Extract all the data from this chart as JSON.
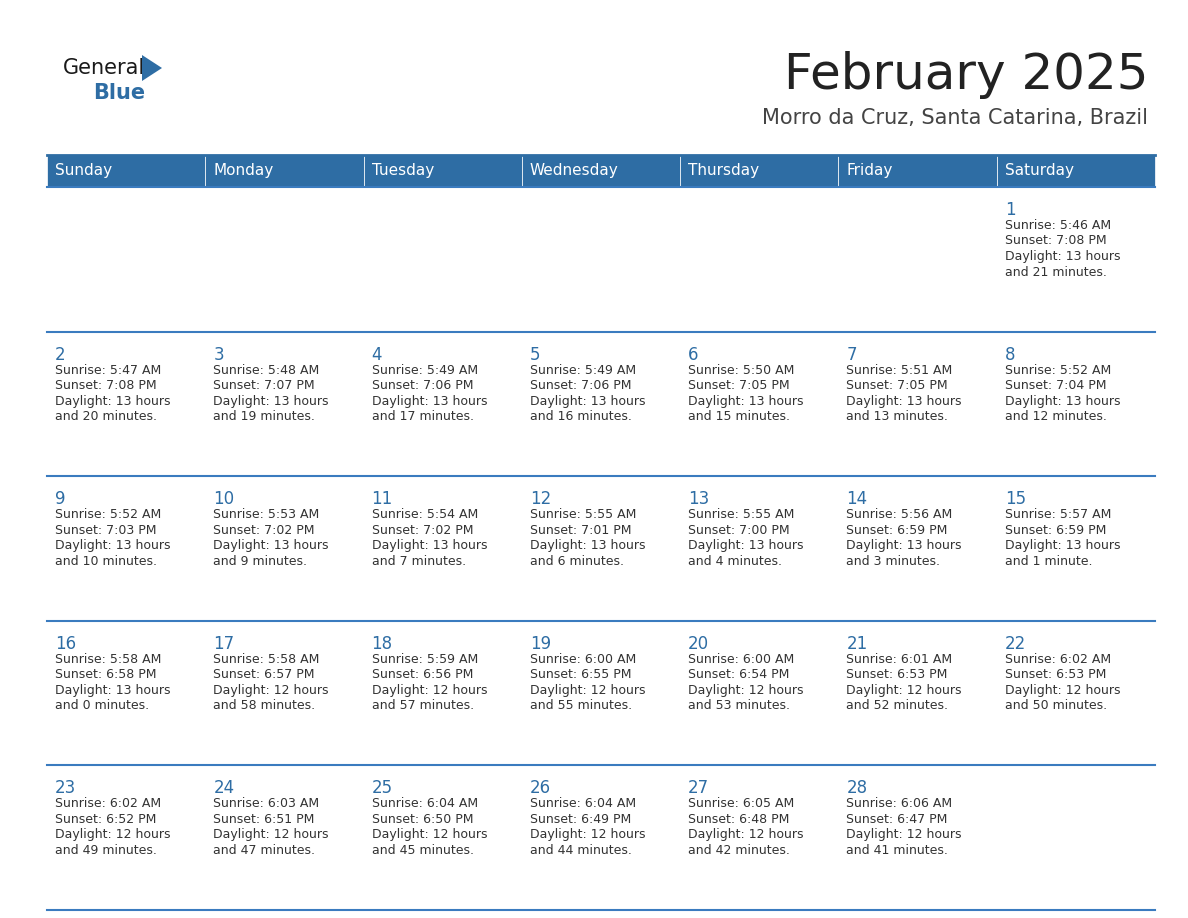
{
  "title": "February 2025",
  "subtitle": "Morro da Cruz, Santa Catarina, Brazil",
  "days_of_week": [
    "Sunday",
    "Monday",
    "Tuesday",
    "Wednesday",
    "Thursday",
    "Friday",
    "Saturday"
  ],
  "header_bg": "#2E6DA4",
  "header_text": "#FFFFFF",
  "cell_bg": "#FFFFFF",
  "row_alt_bg": "#F2F2F2",
  "cell_border_color": "#3A7BBF",
  "day_number_color": "#2E6DA4",
  "info_text_color": "#333333",
  "title_color": "#222222",
  "subtitle_color": "#444444",
  "logo_general_color": "#1A1A1A",
  "logo_blue_color": "#2E6DA4",
  "background_color": "#FFFFFF",
  "calendar_data": [
    [
      null,
      null,
      null,
      null,
      null,
      null,
      {
        "day": 1,
        "sunrise": "5:46 AM",
        "sunset": "7:08 PM",
        "daylight_line1": "Daylight: 13 hours",
        "daylight_line2": "and 21 minutes."
      }
    ],
    [
      {
        "day": 2,
        "sunrise": "5:47 AM",
        "sunset": "7:08 PM",
        "daylight_line1": "Daylight: 13 hours",
        "daylight_line2": "and 20 minutes."
      },
      {
        "day": 3,
        "sunrise": "5:48 AM",
        "sunset": "7:07 PM",
        "daylight_line1": "Daylight: 13 hours",
        "daylight_line2": "and 19 minutes."
      },
      {
        "day": 4,
        "sunrise": "5:49 AM",
        "sunset": "7:06 PM",
        "daylight_line1": "Daylight: 13 hours",
        "daylight_line2": "and 17 minutes."
      },
      {
        "day": 5,
        "sunrise": "5:49 AM",
        "sunset": "7:06 PM",
        "daylight_line1": "Daylight: 13 hours",
        "daylight_line2": "and 16 minutes."
      },
      {
        "day": 6,
        "sunrise": "5:50 AM",
        "sunset": "7:05 PM",
        "daylight_line1": "Daylight: 13 hours",
        "daylight_line2": "and 15 minutes."
      },
      {
        "day": 7,
        "sunrise": "5:51 AM",
        "sunset": "7:05 PM",
        "daylight_line1": "Daylight: 13 hours",
        "daylight_line2": "and 13 minutes."
      },
      {
        "day": 8,
        "sunrise": "5:52 AM",
        "sunset": "7:04 PM",
        "daylight_line1": "Daylight: 13 hours",
        "daylight_line2": "and 12 minutes."
      }
    ],
    [
      {
        "day": 9,
        "sunrise": "5:52 AM",
        "sunset": "7:03 PM",
        "daylight_line1": "Daylight: 13 hours",
        "daylight_line2": "and 10 minutes."
      },
      {
        "day": 10,
        "sunrise": "5:53 AM",
        "sunset": "7:02 PM",
        "daylight_line1": "Daylight: 13 hours",
        "daylight_line2": "and 9 minutes."
      },
      {
        "day": 11,
        "sunrise": "5:54 AM",
        "sunset": "7:02 PM",
        "daylight_line1": "Daylight: 13 hours",
        "daylight_line2": "and 7 minutes."
      },
      {
        "day": 12,
        "sunrise": "5:55 AM",
        "sunset": "7:01 PM",
        "daylight_line1": "Daylight: 13 hours",
        "daylight_line2": "and 6 minutes."
      },
      {
        "day": 13,
        "sunrise": "5:55 AM",
        "sunset": "7:00 PM",
        "daylight_line1": "Daylight: 13 hours",
        "daylight_line2": "and 4 minutes."
      },
      {
        "day": 14,
        "sunrise": "5:56 AM",
        "sunset": "6:59 PM",
        "daylight_line1": "Daylight: 13 hours",
        "daylight_line2": "and 3 minutes."
      },
      {
        "day": 15,
        "sunrise": "5:57 AM",
        "sunset": "6:59 PM",
        "daylight_line1": "Daylight: 13 hours",
        "daylight_line2": "and 1 minute."
      }
    ],
    [
      {
        "day": 16,
        "sunrise": "5:58 AM",
        "sunset": "6:58 PM",
        "daylight_line1": "Daylight: 13 hours",
        "daylight_line2": "and 0 minutes."
      },
      {
        "day": 17,
        "sunrise": "5:58 AM",
        "sunset": "6:57 PM",
        "daylight_line1": "Daylight: 12 hours",
        "daylight_line2": "and 58 minutes."
      },
      {
        "day": 18,
        "sunrise": "5:59 AM",
        "sunset": "6:56 PM",
        "daylight_line1": "Daylight: 12 hours",
        "daylight_line2": "and 57 minutes."
      },
      {
        "day": 19,
        "sunrise": "6:00 AM",
        "sunset": "6:55 PM",
        "daylight_line1": "Daylight: 12 hours",
        "daylight_line2": "and 55 minutes."
      },
      {
        "day": 20,
        "sunrise": "6:00 AM",
        "sunset": "6:54 PM",
        "daylight_line1": "Daylight: 12 hours",
        "daylight_line2": "and 53 minutes."
      },
      {
        "day": 21,
        "sunrise": "6:01 AM",
        "sunset": "6:53 PM",
        "daylight_line1": "Daylight: 12 hours",
        "daylight_line2": "and 52 minutes."
      },
      {
        "day": 22,
        "sunrise": "6:02 AM",
        "sunset": "6:53 PM",
        "daylight_line1": "Daylight: 12 hours",
        "daylight_line2": "and 50 minutes."
      }
    ],
    [
      {
        "day": 23,
        "sunrise": "6:02 AM",
        "sunset": "6:52 PM",
        "daylight_line1": "Daylight: 12 hours",
        "daylight_line2": "and 49 minutes."
      },
      {
        "day": 24,
        "sunrise": "6:03 AM",
        "sunset": "6:51 PM",
        "daylight_line1": "Daylight: 12 hours",
        "daylight_line2": "and 47 minutes."
      },
      {
        "day": 25,
        "sunrise": "6:04 AM",
        "sunset": "6:50 PM",
        "daylight_line1": "Daylight: 12 hours",
        "daylight_line2": "and 45 minutes."
      },
      {
        "day": 26,
        "sunrise": "6:04 AM",
        "sunset": "6:49 PM",
        "daylight_line1": "Daylight: 12 hours",
        "daylight_line2": "and 44 minutes."
      },
      {
        "day": 27,
        "sunrise": "6:05 AM",
        "sunset": "6:48 PM",
        "daylight_line1": "Daylight: 12 hours",
        "daylight_line2": "and 42 minutes."
      },
      {
        "day": 28,
        "sunrise": "6:06 AM",
        "sunset": "6:47 PM",
        "daylight_line1": "Daylight: 12 hours",
        "daylight_line2": "and 41 minutes."
      },
      null
    ]
  ]
}
